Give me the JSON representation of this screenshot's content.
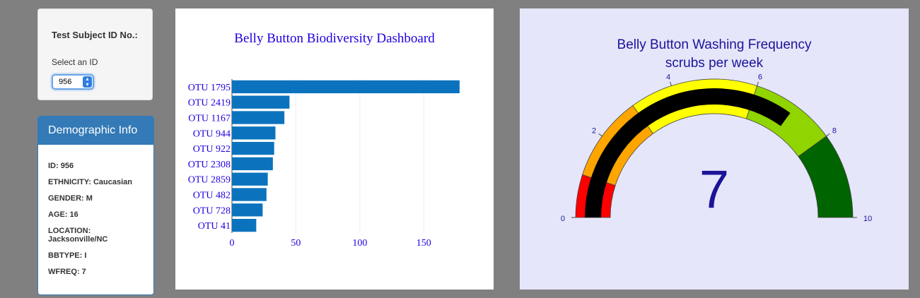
{
  "selector": {
    "title": "Test Subject ID No.:",
    "subtitle": "Select an ID",
    "selected_id": "956"
  },
  "demographics": {
    "header": "Demographic Info",
    "items": [
      "ID: 956",
      "ETHNICITY: Caucasian",
      "GENDER: M",
      "AGE: 16",
      "LOCATION: Jacksonville/NC",
      "BBTYPE: I",
      "WFREQ: 7"
    ]
  },
  "colors": {
    "bar": "#0b73be",
    "title_text": "#1d00e0",
    "gauge_text": "#1a1499"
  },
  "chart_data": [
    {
      "type": "bar",
      "orientation": "horizontal",
      "title": "Belly Button Biodiversity Dashboard",
      "categories": [
        "OTU 1795",
        "OTU 2419",
        "OTU 1167",
        "OTU 944",
        "OTU 922",
        "OTU 2308",
        "OTU 2859",
        "OTU 482",
        "OTU 728",
        "OTU 41"
      ],
      "values": [
        178,
        45,
        41,
        34,
        33,
        32,
        28,
        27,
        24,
        19
      ],
      "xticks": [
        0,
        50,
        100,
        150
      ],
      "xlim": [
        0,
        188
      ],
      "grid": true
    },
    {
      "type": "gauge",
      "title": "Belly Button Washing Frequency",
      "subtitle": "scrubs per week",
      "value": 7,
      "value_label": "7",
      "range": [
        0,
        10
      ],
      "ticks": [
        0,
        2,
        4,
        6,
        8,
        10
      ],
      "steps": [
        {
          "range": [
            0,
            1
          ],
          "color": "#ff0000"
        },
        {
          "range": [
            1,
            3
          ],
          "color": "#ffa500"
        },
        {
          "range": [
            3,
            6
          ],
          "color": "#ffff00"
        },
        {
          "range": [
            6,
            8
          ],
          "color": "#90d400"
        },
        {
          "range": [
            8,
            10
          ],
          "color": "#006400"
        }
      ],
      "bar_color": "#000000"
    }
  ]
}
